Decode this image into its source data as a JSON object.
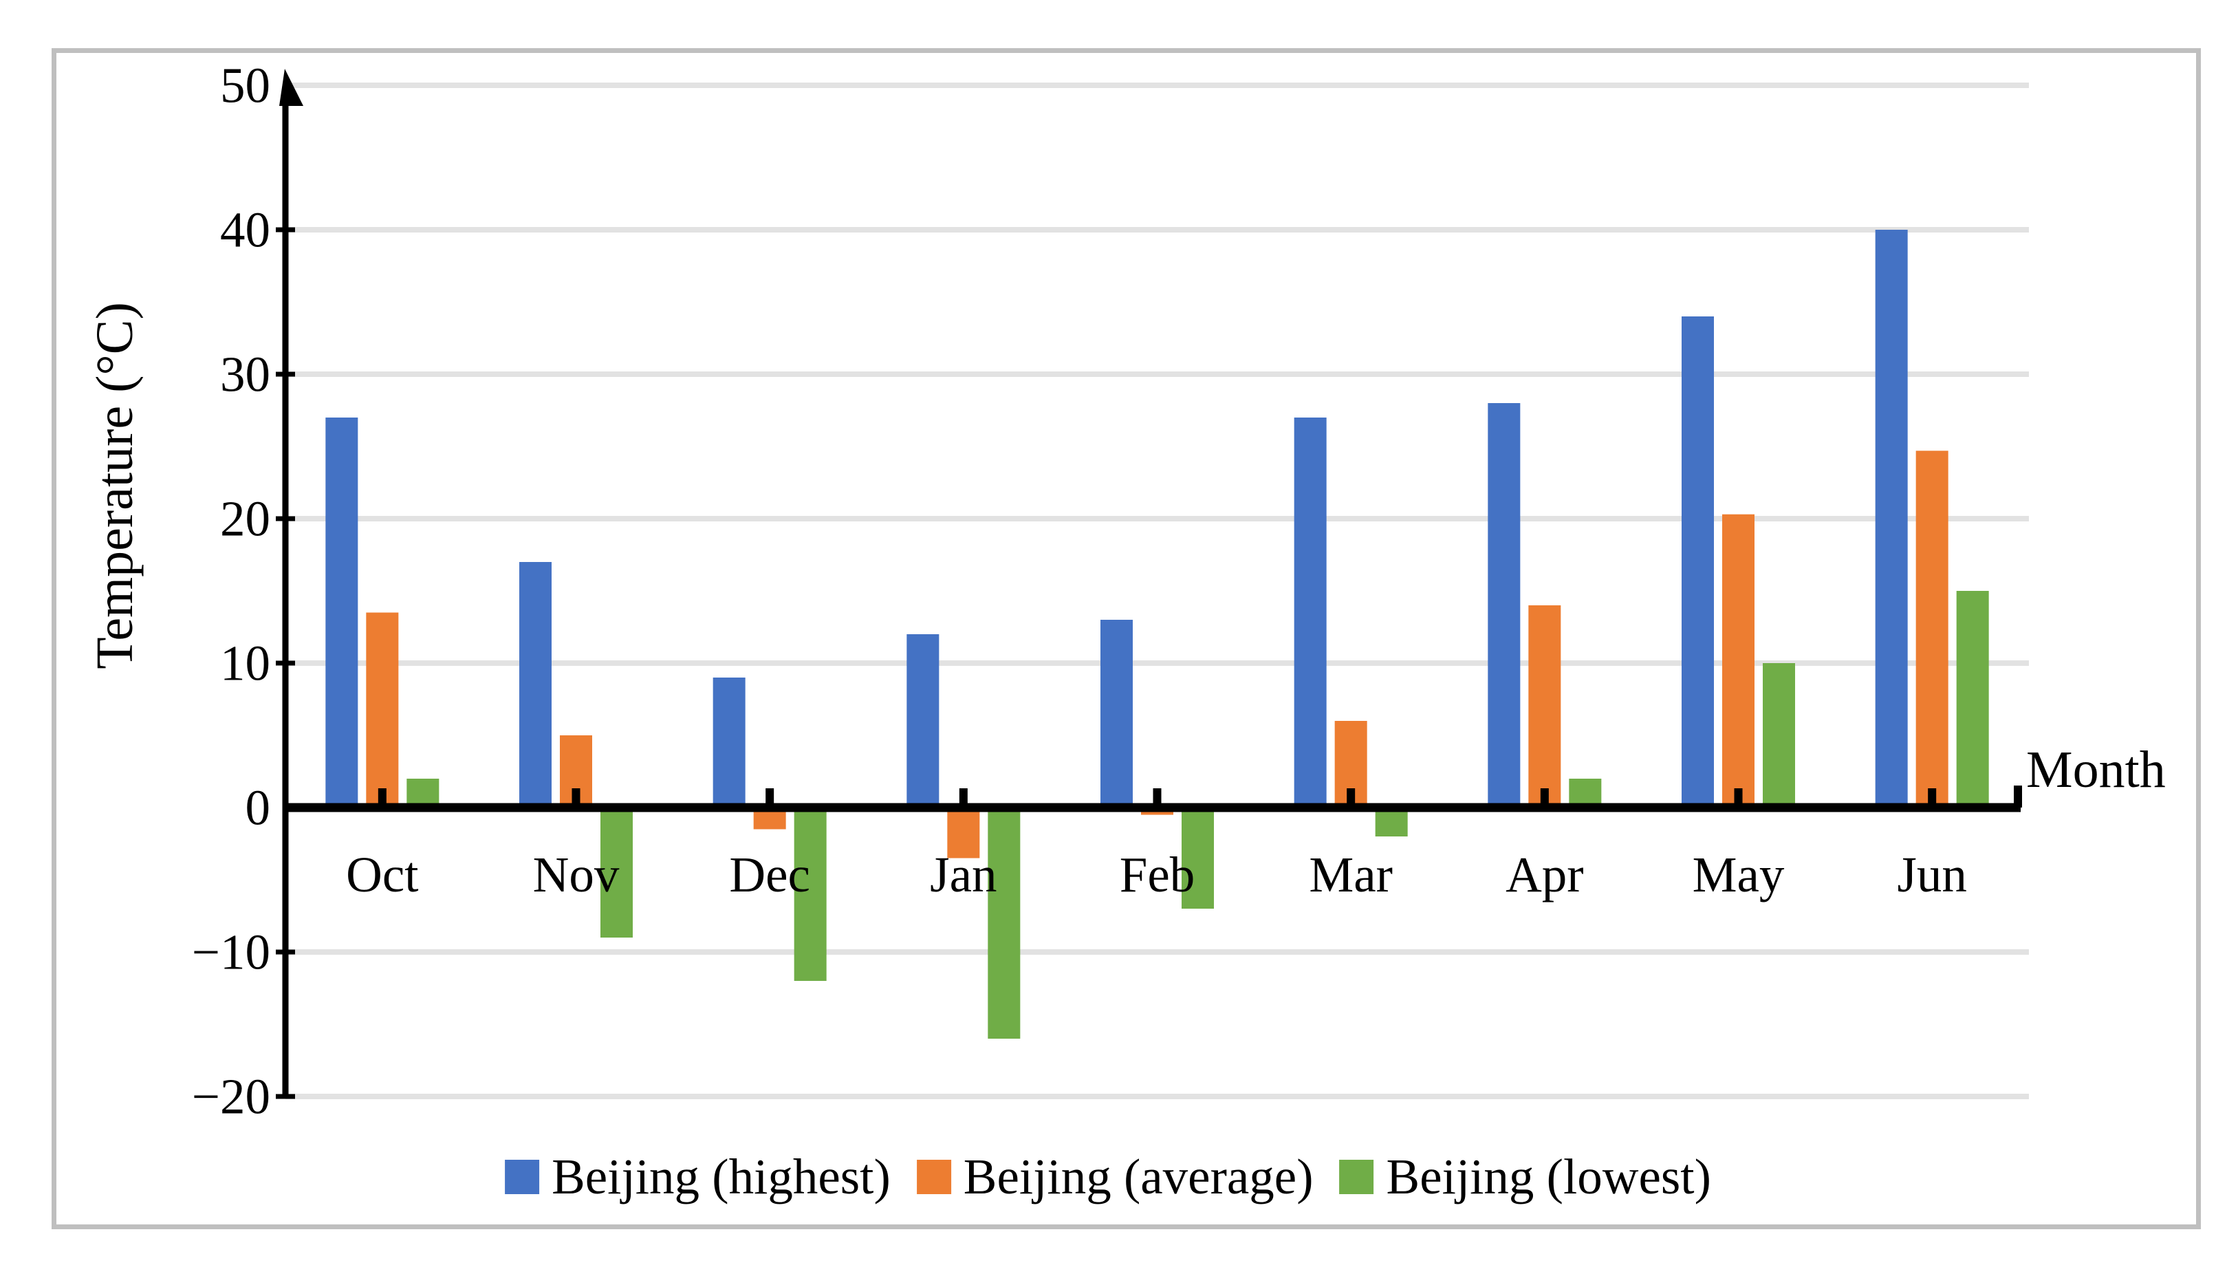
{
  "chart_data": {
    "type": "bar",
    "title": "",
    "categories": [
      "Oct",
      "Nov",
      "Dec",
      "Jan",
      "Feb",
      "Mar",
      "Apr",
      "May",
      "Jun"
    ],
    "series": [
      {
        "name": "Beijing (highest)",
        "color": "#4472C4",
        "values": [
          27,
          17,
          9,
          12,
          13,
          27,
          28,
          34,
          40
        ]
      },
      {
        "name": "Beijing (average)",
        "color": "#ED7D31",
        "values": [
          13.5,
          5,
          -1.5,
          -3.5,
          -0.5,
          6,
          14,
          20.3,
          24.7
        ]
      },
      {
        "name": "Beijing (lowest)",
        "color": "#70AD47",
        "values": [
          2,
          -9,
          -12,
          -16,
          -7,
          -2,
          2,
          10,
          15
        ]
      }
    ],
    "xlabel": "Month",
    "ylabel": "Temperature (°C)",
    "ylim": [
      -20,
      50
    ],
    "yticks": [
      50,
      40,
      30,
      20,
      10,
      0,
      -10,
      -20
    ],
    "ytick_labels": [
      "50",
      "40",
      "30",
      "20",
      "10",
      "0",
      "−10",
      "−20"
    ],
    "grid": true,
    "legend_position": "bottom",
    "colors": {
      "axis": "#000000",
      "gridline": "#E2E2E2",
      "frame_border": "#BFBFBF",
      "background": "#FFFFFF",
      "text": "#000000"
    }
  }
}
